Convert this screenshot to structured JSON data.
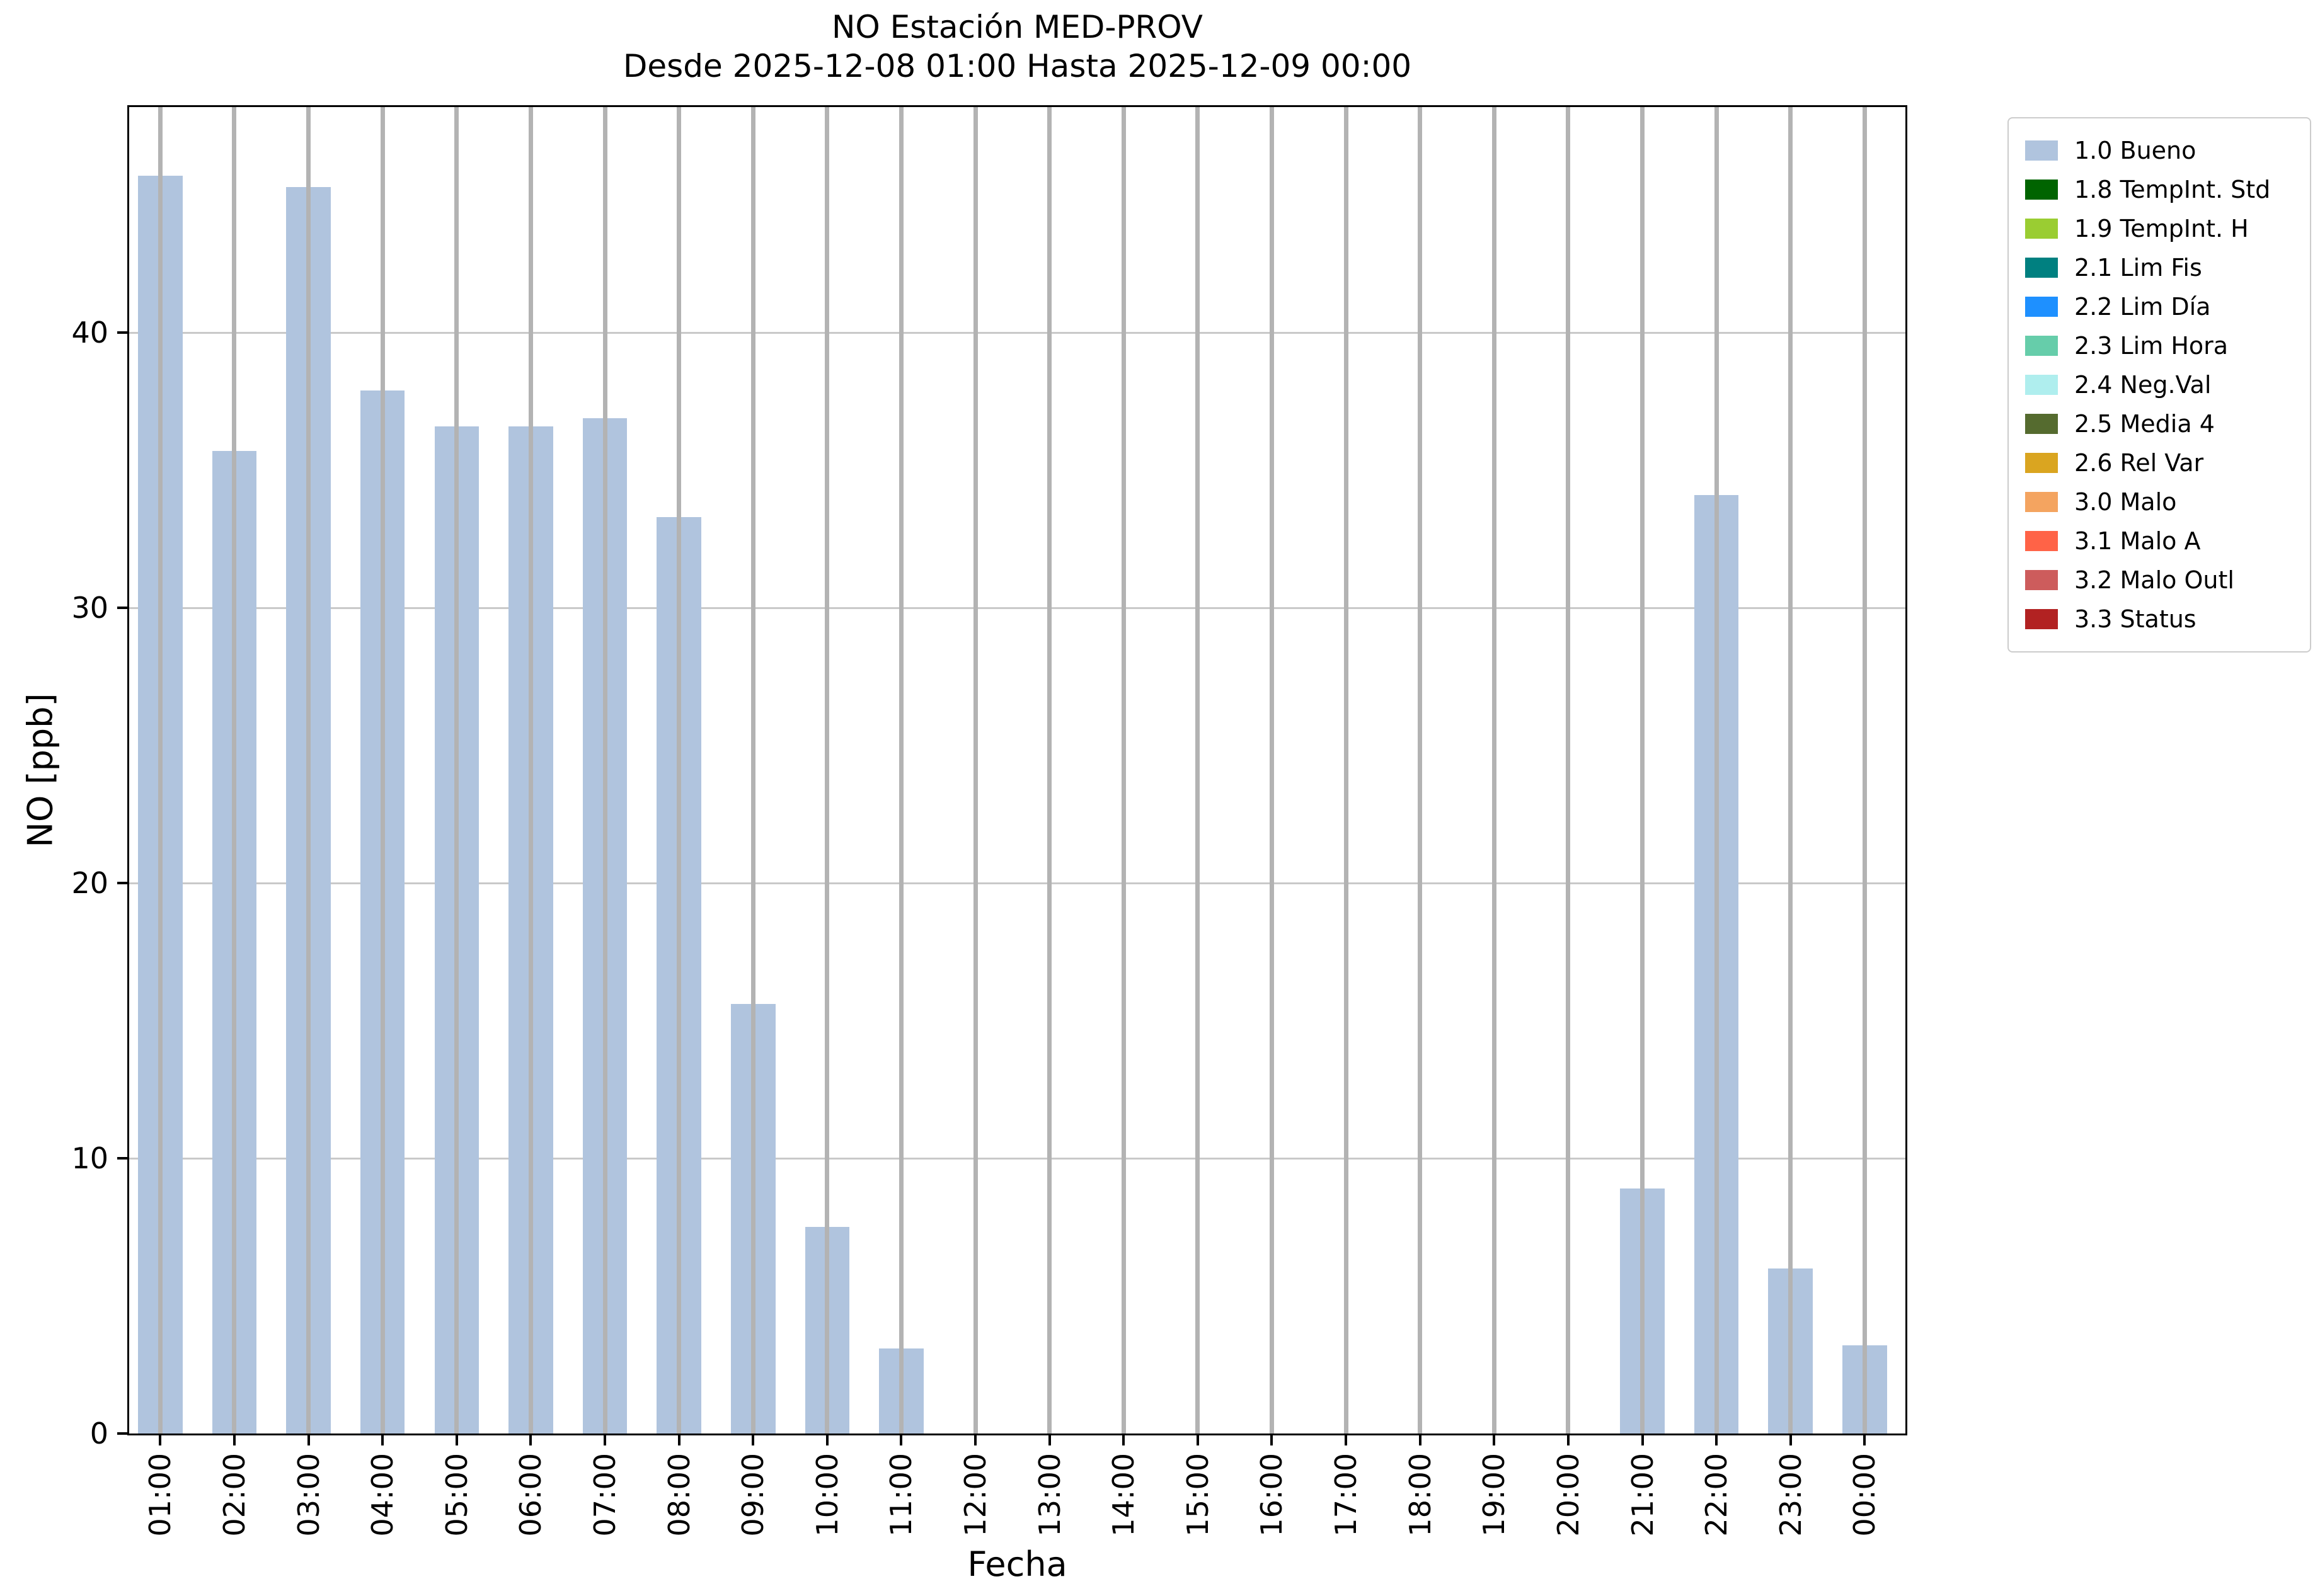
{
  "chart_data": {
    "type": "bar",
    "title": "NO Estación MED-PROV",
    "subtitle": "Desde 2025-12-08 01:00 Hasta 2025-12-09 00:00",
    "xlabel": "Fecha",
    "ylabel": "NO [ppb]",
    "ylim": [
      0,
      48.2
    ],
    "yticks": [
      0,
      10,
      20,
      30,
      40
    ],
    "grid": true,
    "legend_position": "outside upper right",
    "bar_color": "#b0c4de",
    "categories": [
      "01:00",
      "02:00",
      "03:00",
      "04:00",
      "05:00",
      "06:00",
      "07:00",
      "08:00",
      "09:00",
      "10:00",
      "11:00",
      "12:00",
      "13:00",
      "14:00",
      "15:00",
      "16:00",
      "17:00",
      "18:00",
      "19:00",
      "20:00",
      "21:00",
      "22:00",
      "23:00",
      "00:00"
    ],
    "values": [
      45.7,
      35.7,
      45.3,
      37.9,
      36.6,
      36.6,
      36.9,
      33.3,
      15.6,
      7.5,
      3.1,
      0,
      0,
      0,
      0,
      0,
      0,
      0,
      0,
      0,
      8.9,
      34.1,
      6.0,
      3.2
    ],
    "legend": [
      {
        "label": "1.0 Bueno",
        "color": "#b0c4de"
      },
      {
        "label": "1.8 TempInt. Std",
        "color": "#006400"
      },
      {
        "label": "1.9 TempInt. H",
        "color": "#9acd32"
      },
      {
        "label": "2.1 Lim Fis",
        "color": "#008080"
      },
      {
        "label": "2.2 Lim Día",
        "color": "#1e90ff"
      },
      {
        "label": "2.3 Lim Hora",
        "color": "#66cdaa"
      },
      {
        "label": "2.4 Neg.Val",
        "color": "#afeeee"
      },
      {
        "label": "2.5 Media 4",
        "color": "#556b2f"
      },
      {
        "label": "2.6 Rel Var",
        "color": "#daa520"
      },
      {
        "label": "3.0 Malo",
        "color": "#f4a460"
      },
      {
        "label": "3.1 Malo A",
        "color": "#ff6347"
      },
      {
        "label": "3.2 Malo Outl",
        "color": "#cd5c5c"
      },
      {
        "label": "3.3 Status",
        "color": "#b22222"
      }
    ]
  }
}
